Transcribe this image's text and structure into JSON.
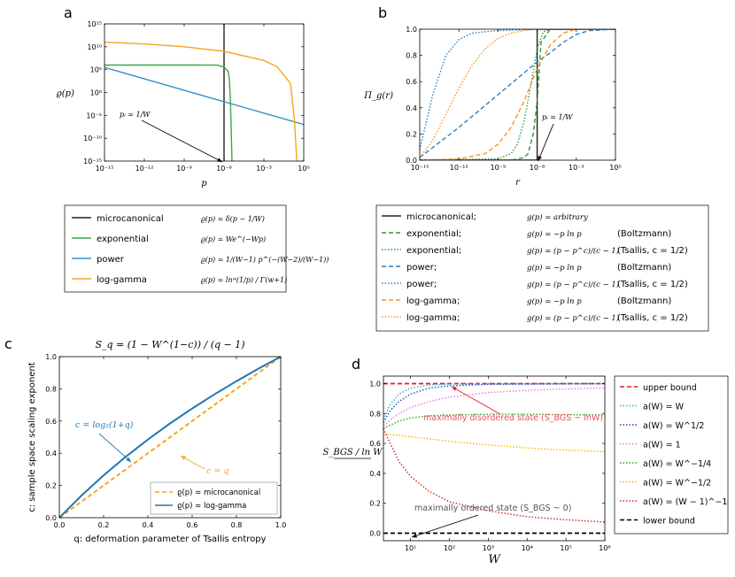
{
  "chart_data": [
    {
      "panel": "a",
      "type": "line",
      "xscale": "log",
      "yscale": "log",
      "xlim": [
        1e-15,
        1
      ],
      "ylim": [
        1e-15,
        1000000000000000.0
      ],
      "xlabel": "p",
      "ylabel": "ϱ(p)",
      "x_ticks": [
        "10⁻¹⁵",
        "10⁻¹²",
        "10⁻⁹",
        "10⁻⁶",
        "10⁻³",
        "10⁰"
      ],
      "y_ticks": [
        "10⁻¹⁵",
        "10⁻¹⁰",
        "10⁻⁵",
        "10⁰",
        "10⁵",
        "10¹⁰",
        "10¹⁵"
      ],
      "annotation": "pᵢ = 1/W",
      "legend": [
        {
          "name": "microcanonical",
          "formula": "ϱ(p) = δ(p − 1/W)",
          "color": "#222222"
        },
        {
          "name": "exponential",
          "formula": "ϱ(p) = We^(−Wp)",
          "color": "#3aa84a"
        },
        {
          "name": "power",
          "formula": "ϱ(p) = 1/(W−1) p^(−(W−2)/(W−1))",
          "color": "#3a8fc8"
        },
        {
          "name": "log-gamma",
          "formula": "ϱ(p) = lnʷ(1/p) / Γ(w+1)",
          "color": "#f5a623"
        }
      ],
      "series": [
        {
          "name": "microcanonical",
          "x": [
            1e-06,
            1e-06
          ],
          "y": [
            1e-15,
            1000000000000000.0
          ]
        },
        {
          "name": "exponential",
          "x": [
            1e-15,
            1e-08,
            3e-07,
            7e-07,
            1e-06,
            1.5e-06,
            2e-06,
            2.5e-06,
            3e-06,
            4e-06
          ],
          "y": [
            1000000.0,
            1000000.0,
            970000.0,
            500000.0,
            370000.0,
            110000.0,
            50000.0,
            1000.0,
            0.02,
            1e-15
          ]
        },
        {
          "name": "power",
          "x": [
            1e-15,
            1
          ],
          "y": [
            300000.0,
            1e-07
          ]
        },
        {
          "name": "log-gamma",
          "x": [
            1e-15,
            1e-12,
            1e-09,
            1e-06,
            0.001,
            0.01,
            0.1,
            0.2,
            0.3
          ],
          "y": [
            100000000000.0,
            40000000000.0,
            10000000000.0,
            1000000000.0,
            10000000.0,
            400000.0,
            100.0,
            1e-06,
            1e-15
          ]
        }
      ]
    },
    {
      "panel": "b",
      "type": "line",
      "xscale": "log",
      "yscale": "linear",
      "xlim": [
        1e-15,
        1
      ],
      "ylim": [
        0,
        1.0
      ],
      "xlabel": "r",
      "ylabel": "Π_g(r)",
      "x_ticks": [
        "10⁻¹⁵",
        "10⁻¹²",
        "10⁻⁹",
        "10⁻⁶",
        "10⁻³",
        "10⁰"
      ],
      "y_ticks": [
        "0.0",
        "0.2",
        "0.4",
        "0.6",
        "0.8",
        "1.0"
      ],
      "annotation": "pᵢ = 1/W",
      "legend": [
        {
          "name": "microcanonical;",
          "formula": "g(p) = arbitrary",
          "extra": "",
          "color": "#222222",
          "dash": "solid"
        },
        {
          "name": "exponential;",
          "formula": "g(p) = −p ln p",
          "extra": "(Boltzmann)",
          "color": "#2a9a3a",
          "dash": "dashed"
        },
        {
          "name": "exponential;",
          "formula": "g(p) = (p − p^c)/(c − 1)",
          "extra": "(Tsallis, c = 1/2)",
          "color": "#2a9a3a",
          "dash": "dotted"
        },
        {
          "name": "power;",
          "formula": "g(p) = −p ln p",
          "extra": "(Boltzmann)",
          "color": "#2a7fc0",
          "dash": "dashed"
        },
        {
          "name": "power;",
          "formula": "g(p) = (p − p^c)/(c − 1)",
          "extra": "(Tsallis, c = 1/2)",
          "color": "#2a7fc0",
          "dash": "dotted"
        },
        {
          "name": "log-gamma;",
          "formula": "g(p) = −p ln p",
          "extra": "(Boltzmann)",
          "color": "#f5961e",
          "dash": "dashed"
        },
        {
          "name": "log-gamma;",
          "formula": "g(p) = (p − p^c)/(c − 1)",
          "extra": "(Tsallis, c = 1/2)",
          "color": "#f5961e",
          "dash": "dotted"
        }
      ],
      "series": [
        {
          "name": "microcanonical",
          "x": [
            1e-15,
            1e-06,
            1e-06,
            1
          ],
          "y": [
            0,
            0,
            1,
            1
          ]
        },
        {
          "name": "exponential Boltzmann",
          "x": [
            1e-15,
            1e-08,
            1e-07,
            2e-07,
            5e-07,
            1e-06,
            2e-06,
            1e-05,
            1
          ],
          "y": [
            0,
            0,
            0.02,
            0.05,
            0.2,
            0.45,
            0.9,
            1,
            1
          ]
        },
        {
          "name": "exponential Tsallis",
          "x": [
            1e-15,
            1e-09,
            1e-08,
            3e-08,
            1e-07,
            3e-07,
            1e-06,
            3e-06,
            1e-05,
            1
          ],
          "y": [
            0,
            0.01,
            0.05,
            0.12,
            0.3,
            0.55,
            0.85,
            0.98,
            1,
            1
          ]
        },
        {
          "name": "power Boltzmann",
          "x": [
            1e-15,
            1e-12,
            1e-09,
            1e-06,
            1e-05,
            0.0001,
            0.001,
            0.01,
            1
          ],
          "y": [
            0.02,
            0.25,
            0.5,
            0.75,
            0.82,
            0.9,
            0.96,
            0.99,
            1
          ]
        },
        {
          "name": "power Tsallis",
          "x": [
            1e-15,
            1e-14,
            1e-13,
            1e-12,
            1e-11,
            1e-09,
            1e-06,
            1
          ],
          "y": [
            0.08,
            0.5,
            0.8,
            0.92,
            0.97,
            0.99,
            1,
            1
          ]
        },
        {
          "name": "log-gamma Boltzmann",
          "x": [
            1e-15,
            1e-12,
            1e-10,
            1e-09,
            1e-08,
            1e-07,
            1e-06,
            1e-05,
            0.0001,
            0.001,
            1
          ],
          "y": [
            0,
            0.01,
            0.05,
            0.12,
            0.25,
            0.45,
            0.7,
            0.88,
            0.97,
            1,
            1
          ]
        },
        {
          "name": "log-gamma Tsallis",
          "x": [
            1e-15,
            1e-14,
            1e-13,
            1e-12,
            1e-11,
            1e-10,
            1e-09,
            1e-08,
            1e-07,
            1e-06,
            1
          ],
          "y": [
            0.02,
            0.15,
            0.35,
            0.55,
            0.72,
            0.85,
            0.93,
            0.97,
            0.99,
            1,
            1
          ]
        }
      ]
    },
    {
      "panel": "c",
      "type": "line",
      "title": "S_q = (1 − W^(1−c)) / (q − 1)",
      "xlim": [
        0,
        1.0
      ],
      "ylim": [
        0,
        1.0
      ],
      "xlabel": "q: deformation parameter of Tsallis entropy",
      "ylabel": "c: sample space scaling exponent",
      "x_ticks": [
        "0.0",
        "0.2",
        "0.4",
        "0.6",
        "0.8",
        "1.0"
      ],
      "y_ticks": [
        "0.0",
        "0.2",
        "0.4",
        "0.6",
        "0.8",
        "1.0"
      ],
      "annotations": [
        "c = log₂(1+q)",
        "c = q"
      ],
      "legend": [
        {
          "name": "ϱ(p) = microcanonical",
          "color": "#f5a623",
          "dash": "dashed"
        },
        {
          "name": "ϱ(p) = log-gamma",
          "color": "#1f77b4",
          "dash": "solid"
        }
      ],
      "series": [
        {
          "name": "microcanonical",
          "x": [
            0,
            1
          ],
          "y": [
            0,
            1
          ]
        },
        {
          "name": "log-gamma",
          "x": [
            0,
            0.1,
            0.2,
            0.3,
            0.4,
            0.5,
            0.6,
            0.7,
            0.8,
            0.9,
            1.0
          ],
          "y": [
            0,
            0.1375,
            0.263,
            0.3785,
            0.4854,
            0.585,
            0.678,
            0.7655,
            0.848,
            0.926,
            1.0
          ]
        }
      ]
    },
    {
      "panel": "d",
      "type": "line",
      "xscale": "log",
      "xlim": [
        2,
        1000000
      ],
      "ylim": [
        -0.05,
        1.05
      ],
      "xlabel": "W",
      "ylabel": "S_BGS / ln W",
      "x_ticks": [
        "10¹",
        "10²",
        "10³",
        "10⁴",
        "10⁵",
        "10⁶"
      ],
      "y_ticks": [
        "0.0",
        "0.2",
        "0.4",
        "0.6",
        "0.8",
        "1.0"
      ],
      "annotations": [
        "maximally disordered state (S_BGS ~ lnW)",
        "maximally ordered state (S_BGS ~ 0)"
      ],
      "legend": [
        {
          "name": "upper bound",
          "color": "#e31a1c",
          "dash": "dashed"
        },
        {
          "name": "a(W) = W",
          "color": "#17becf",
          "dash": "dotted"
        },
        {
          "name": "a(W) = W^1/2",
          "color": "#2f3fc8",
          "dash": "dotted"
        },
        {
          "name": "a(W) = 1",
          "color": "#e07ae0",
          "dash": "dotted"
        },
        {
          "name": "a(W) = W^−1/4",
          "color": "#2ca02c",
          "dash": "dotted"
        },
        {
          "name": "a(W) = W^−1/2",
          "color": "#f5b800",
          "dash": "dotted"
        },
        {
          "name": "a(W) = (W − 1)^−1",
          "color": "#d62728",
          "dash": "dotted"
        },
        {
          "name": "lower bound",
          "color": "#000000",
          "dash": "dashed"
        }
      ],
      "series": [
        {
          "name": "upper bound",
          "x": [
            2,
            1000000
          ],
          "y": [
            1,
            1
          ]
        },
        {
          "name": "a(W) = W",
          "x": [
            2,
            3,
            5,
            10,
            30,
            100,
            1000,
            1000000
          ],
          "y": [
            0.76,
            0.86,
            0.93,
            0.97,
            0.99,
            0.997,
            1,
            1
          ]
        },
        {
          "name": "a(W) = W^1/2",
          "x": [
            2,
            3,
            5,
            10,
            30,
            100,
            1000,
            1000000
          ],
          "y": [
            0.74,
            0.82,
            0.88,
            0.93,
            0.97,
            0.985,
            0.995,
            1
          ]
        },
        {
          "name": "a(W) = 1",
          "x": [
            2,
            5,
            10,
            30,
            100,
            1000,
            10000,
            100000,
            1000000
          ],
          "y": [
            0.72,
            0.8,
            0.84,
            0.88,
            0.91,
            0.94,
            0.955,
            0.965,
            0.97
          ]
        },
        {
          "name": "a(W) = W^−1/4",
          "x": [
            2,
            5,
            10,
            30,
            100,
            1000,
            10000,
            100000,
            1000000
          ],
          "y": [
            0.7,
            0.75,
            0.77,
            0.785,
            0.79,
            0.795,
            0.795,
            0.792,
            0.79
          ]
        },
        {
          "name": "a(W) = W^−1/2",
          "x": [
            2,
            5,
            10,
            100,
            1000,
            10000,
            100000,
            1000000
          ],
          "y": [
            0.66,
            0.655,
            0.645,
            0.615,
            0.59,
            0.57,
            0.555,
            0.545
          ]
        },
        {
          "name": "a(W) = (W − 1)^−1",
          "x": [
            2,
            3,
            5,
            10,
            30,
            100,
            1000,
            10000,
            100000,
            1000000
          ],
          "y": [
            0.7,
            0.6,
            0.48,
            0.38,
            0.28,
            0.21,
            0.15,
            0.11,
            0.09,
            0.075
          ]
        },
        {
          "name": "lower bound",
          "x": [
            2,
            1000000
          ],
          "y": [
            0,
            0
          ]
        }
      ]
    }
  ]
}
